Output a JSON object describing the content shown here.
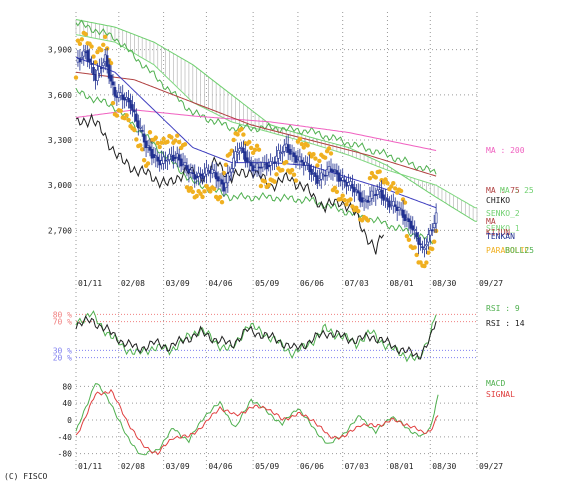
{
  "footer": {
    "credit": "(C) FISCO"
  },
  "colors": {
    "grid": "#9a9a9a",
    "candle_up": "#ffffff",
    "candle_down": "#203090",
    "candle_edge": "#203090",
    "cloud_line": "#80d880",
    "cloud_fill": "#b8b8b8",
    "parabolic": "#f0b020",
    "ma25": "#4040c0",
    "ma75": "#b04040",
    "ma200": "#f060c0",
    "chiko": "#202020",
    "bollinger": "#50b050",
    "senkou2": "#70d070",
    "rsi9": "#50b050",
    "rsi14": "#202020",
    "macd": "#50b050",
    "signal": "#e04040",
    "rsi_ref_upper": "#f08080",
    "rsi_ref_lower": "#8080f0"
  },
  "chart_data": [
    {
      "type": "candlestick",
      "panel": "price",
      "x_ticks": [
        "01/11",
        "02/08",
        "03/09",
        "04/06",
        "05/09",
        "06/06",
        "07/03",
        "08/01",
        "08/30",
        "09/27"
      ],
      "y_ticks": [
        3900,
        3600,
        3300,
        3000,
        2700
      ],
      "y_tick_labels": [
        "3,900",
        "3,600",
        "3,300",
        "3,000",
        "2,700"
      ],
      "ylim": [
        2450,
        4150
      ],
      "grid": true,
      "legend_labels": {
        "ma200": "MA : 200",
        "ma75": "MA : 75",
        "ma25": "MA : 25",
        "ma_prefix": "MA",
        "chiko": "CHIKO",
        "senkou2": "SENKO_2",
        "senkou1": "SENKO_1",
        "kijun": "KIJUN",
        "tenkan": "TENKAN",
        "parabolic": "PARABOLIC",
        "bollinger": "BOLL25"
      },
      "close_anchors": [
        [
          0,
          3800
        ],
        [
          5,
          3900
        ],
        [
          10,
          3700
        ],
        [
          15,
          3850
        ],
        [
          20,
          3600
        ],
        [
          28,
          3550
        ],
        [
          36,
          3250
        ],
        [
          44,
          3150
        ],
        [
          52,
          3200
        ],
        [
          60,
          3050
        ],
        [
          68,
          3100
        ],
        [
          76,
          3000
        ],
        [
          84,
          3250
        ],
        [
          92,
          3100
        ],
        [
          100,
          3150
        ],
        [
          108,
          3250
        ],
        [
          116,
          3150
        ],
        [
          124,
          3050
        ],
        [
          132,
          3100
        ],
        [
          140,
          3000
        ],
        [
          148,
          2900
        ],
        [
          156,
          2950
        ],
        [
          164,
          2850
        ],
        [
          172,
          2750
        ],
        [
          178,
          2550
        ],
        [
          182,
          2700
        ],
        [
          185,
          2800
        ]
      ],
      "ma25_anchors": [
        [
          0,
          3850
        ],
        [
          20,
          3750
        ],
        [
          40,
          3500
        ],
        [
          60,
          3250
        ],
        [
          80,
          3150
        ],
        [
          100,
          3150
        ],
        [
          120,
          3130
        ],
        [
          140,
          3050
        ],
        [
          160,
          2970
        ],
        [
          185,
          2850
        ]
      ],
      "ma75_anchors": [
        [
          0,
          3750
        ],
        [
          30,
          3700
        ],
        [
          60,
          3550
        ],
        [
          90,
          3400
        ],
        [
          120,
          3300
        ],
        [
          150,
          3200
        ],
        [
          185,
          3060
        ]
      ],
      "ma200_anchors": [
        [
          0,
          3450
        ],
        [
          30,
          3500
        ],
        [
          60,
          3460
        ],
        [
          100,
          3420
        ],
        [
          140,
          3350
        ],
        [
          185,
          3230
        ]
      ],
      "span_a_anchors": [
        [
          0,
          4000
        ],
        [
          20,
          3950
        ],
        [
          40,
          3800
        ],
        [
          60,
          3550
        ],
        [
          80,
          3420
        ],
        [
          100,
          3350
        ],
        [
          120,
          3280
        ],
        [
          140,
          3200
        ],
        [
          160,
          3100
        ],
        [
          185,
          3000
        ],
        [
          205,
          2850
        ]
      ],
      "span_b_anchors": [
        [
          0,
          4100
        ],
        [
          20,
          4050
        ],
        [
          40,
          3950
        ],
        [
          60,
          3800
        ],
        [
          80,
          3600
        ],
        [
          100,
          3400
        ],
        [
          120,
          3320
        ],
        [
          140,
          3250
        ],
        [
          160,
          3130
        ],
        [
          185,
          2920
        ],
        [
          205,
          2760
        ]
      ],
      "chiko_anchors": [
        [
          0,
          3400
        ],
        [
          8,
          3450
        ],
        [
          16,
          3300
        ],
        [
          24,
          3150
        ],
        [
          32,
          3100
        ],
        [
          40,
          3050
        ],
        [
          48,
          3000
        ],
        [
          56,
          3100
        ],
        [
          64,
          3050
        ],
        [
          72,
          3150
        ],
        [
          80,
          3050
        ],
        [
          90,
          3100
        ],
        [
          100,
          3000
        ],
        [
          110,
          3050
        ],
        [
          120,
          2950
        ],
        [
          128,
          2850
        ],
        [
          136,
          2900
        ],
        [
          144,
          2800
        ],
        [
          150,
          2650
        ],
        [
          154,
          2550
        ],
        [
          158,
          2700
        ]
      ],
      "bollinger_mid_offset": 0,
      "bollinger_width": 230,
      "parabolic_offset": 120,
      "last_close": 2730
    },
    {
      "type": "line",
      "panel": "rsi",
      "ylim": [
        0,
        100
      ],
      "ref_lines": [
        80,
        70,
        30,
        20
      ],
      "ref_labels": [
        "80 %",
        "70 %",
        "30 %",
        "20 %"
      ],
      "series": [
        {
          "name": "RSI : 9",
          "anchors": [
            [
              0,
              70
            ],
            [
              8,
              80
            ],
            [
              16,
              55
            ],
            [
              24,
              35
            ],
            [
              32,
              25
            ],
            [
              40,
              35
            ],
            [
              48,
              30
            ],
            [
              56,
              45
            ],
            [
              64,
              60
            ],
            [
              72,
              40
            ],
            [
              80,
              30
            ],
            [
              88,
              65
            ],
            [
              96,
              55
            ],
            [
              104,
              40
            ],
            [
              112,
              25
            ],
            [
              120,
              40
            ],
            [
              128,
              60
            ],
            [
              136,
              50
            ],
            [
              144,
              40
            ],
            [
              152,
              55
            ],
            [
              160,
              35
            ],
            [
              168,
              25
            ],
            [
              176,
              15
            ],
            [
              182,
              55
            ],
            [
              185,
              82
            ]
          ]
        },
        {
          "name": "RSI : 14",
          "anchors": [
            [
              0,
              65
            ],
            [
              8,
              72
            ],
            [
              16,
              58
            ],
            [
              24,
              42
            ],
            [
              32,
              32
            ],
            [
              40,
              40
            ],
            [
              48,
              35
            ],
            [
              56,
              45
            ],
            [
              64,
              55
            ],
            [
              72,
              45
            ],
            [
              80,
              38
            ],
            [
              88,
              58
            ],
            [
              96,
              52
            ],
            [
              104,
              44
            ],
            [
              112,
              32
            ],
            [
              120,
              42
            ],
            [
              128,
              55
            ],
            [
              136,
              50
            ],
            [
              144,
              44
            ],
            [
              152,
              50
            ],
            [
              160,
              40
            ],
            [
              168,
              30
            ],
            [
              176,
              22
            ],
            [
              182,
              45
            ],
            [
              185,
              70
            ]
          ]
        }
      ]
    },
    {
      "type": "line",
      "panel": "macd",
      "y_ticks": [
        80,
        40,
        0,
        -40,
        -80
      ],
      "ylim": [
        -95,
        95
      ],
      "series": [
        {
          "name": "MACD",
          "anchors": [
            [
              0,
              -30
            ],
            [
              10,
              90
            ],
            [
              18,
              40
            ],
            [
              26,
              -40
            ],
            [
              34,
              -85
            ],
            [
              42,
              -70
            ],
            [
              50,
              -20
            ],
            [
              58,
              -50
            ],
            [
              66,
              10
            ],
            [
              74,
              40
            ],
            [
              82,
              -20
            ],
            [
              90,
              50
            ],
            [
              98,
              20
            ],
            [
              106,
              -10
            ],
            [
              114,
              30
            ],
            [
              122,
              -20
            ],
            [
              130,
              -60
            ],
            [
              138,
              -30
            ],
            [
              146,
              10
            ],
            [
              154,
              -30
            ],
            [
              162,
              10
            ],
            [
              170,
              -20
            ],
            [
              178,
              -40
            ],
            [
              182,
              -20
            ],
            [
              186,
              60
            ]
          ]
        },
        {
          "name": "SIGNAL",
          "anchors": [
            [
              0,
              -40
            ],
            [
              10,
              60
            ],
            [
              18,
              70
            ],
            [
              26,
              0
            ],
            [
              34,
              -60
            ],
            [
              42,
              -80
            ],
            [
              50,
              -40
            ],
            [
              58,
              -40
            ],
            [
              66,
              -10
            ],
            [
              74,
              30
            ],
            [
              82,
              10
            ],
            [
              90,
              30
            ],
            [
              98,
              30
            ],
            [
              106,
              0
            ],
            [
              114,
              15
            ],
            [
              122,
              0
            ],
            [
              130,
              -40
            ],
            [
              138,
              -40
            ],
            [
              146,
              -10
            ],
            [
              154,
              -15
            ],
            [
              162,
              0
            ],
            [
              170,
              -10
            ],
            [
              178,
              -30
            ],
            [
              182,
              -25
            ],
            [
              186,
              10
            ]
          ]
        }
      ]
    }
  ]
}
